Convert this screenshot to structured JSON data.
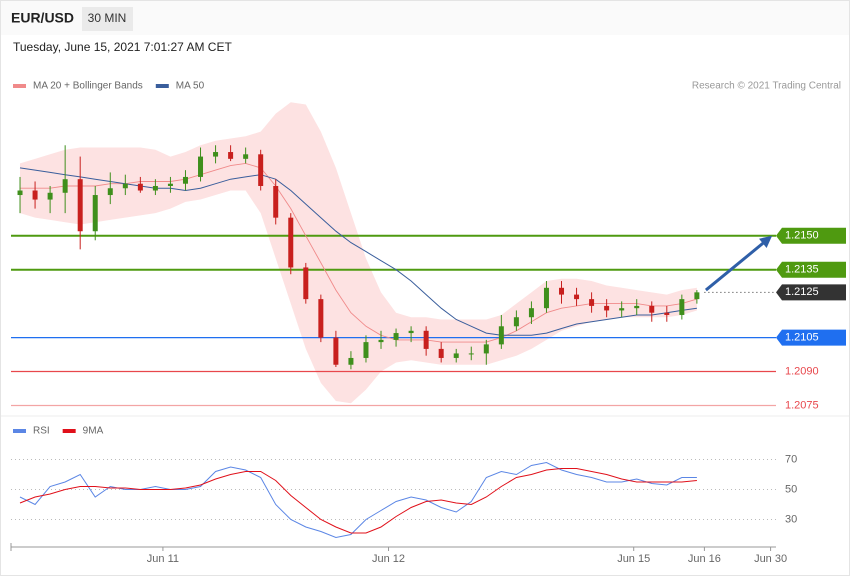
{
  "header": {
    "symbol": "EUR/USD",
    "timeframe": "30 MIN",
    "timestamp": "Tuesday, June 15, 2021 7:01:27 AM CET",
    "source": "Research © 2021 Trading Central"
  },
  "chart_data": [
    {
      "type": "candlestick",
      "xlim": [
        -0.6,
        50.26
      ],
      "ylim": [
        1.2073,
        1.221
      ],
      "up_color": "#3f8f1c",
      "down_color": "#c8201e",
      "open": [
        1.2168,
        1.217,
        1.2166,
        1.2169,
        1.2175,
        1.2152,
        1.2168,
        1.2171,
        1.2173,
        1.217,
        1.2172,
        1.2173,
        1.2176,
        1.2185,
        1.2187,
        1.2184,
        1.2186,
        1.2172,
        1.2158,
        1.2136,
        1.2122,
        1.2105,
        1.2093,
        1.2096,
        1.2103,
        1.2104,
        1.2107,
        1.2108,
        1.21,
        1.2096,
        1.2098,
        1.2098,
        1.2102,
        1.211,
        1.2114,
        1.2118,
        1.2127,
        1.2124,
        1.2122,
        1.2119,
        1.2117,
        1.2118,
        1.2119,
        1.2116,
        1.2115,
        1.2122
      ],
      "high": [
        1.2176,
        1.2174,
        1.2172,
        1.219,
        1.2185,
        1.2172,
        1.2178,
        1.2177,
        1.2176,
        1.2175,
        1.2176,
        1.2179,
        1.2189,
        1.219,
        1.219,
        1.2189,
        1.2188,
        1.2175,
        1.216,
        1.2138,
        1.2124,
        1.2108,
        1.2099,
        1.2106,
        1.2108,
        1.2109,
        1.211,
        1.211,
        1.2103,
        1.21,
        1.2101,
        1.2104,
        1.2115,
        1.2117,
        1.2121,
        1.213,
        1.213,
        1.2127,
        1.2125,
        1.2122,
        1.2121,
        1.2122,
        1.2121,
        1.2119,
        1.2124,
        1.2126
      ],
      "low": [
        1.216,
        1.2162,
        1.216,
        1.216,
        1.2144,
        1.2148,
        1.2164,
        1.2168,
        1.2169,
        1.2168,
        1.2169,
        1.217,
        1.2174,
        1.2182,
        1.2183,
        1.2182,
        1.217,
        1.2155,
        1.2133,
        1.212,
        1.2103,
        1.2092,
        1.2091,
        1.2094,
        1.21,
        1.2101,
        1.2103,
        1.2097,
        1.2094,
        1.2094,
        1.2095,
        1.2093,
        1.21,
        1.2108,
        1.2111,
        1.2116,
        1.212,
        1.2119,
        1.2116,
        1.2114,
        1.2114,
        1.2115,
        1.2112,
        1.2112,
        1.2113,
        1.212
      ],
      "close": [
        1.217,
        1.2166,
        1.2169,
        1.2175,
        1.2152,
        1.2168,
        1.2171,
        1.2173,
        1.217,
        1.2172,
        1.2173,
        1.2176,
        1.2185,
        1.2187,
        1.2184,
        1.2186,
        1.2172,
        1.2158,
        1.2136,
        1.2122,
        1.2105,
        1.2093,
        1.2096,
        1.2103,
        1.2104,
        1.2107,
        1.2108,
        1.21,
        1.2096,
        1.2098,
        1.2098,
        1.2102,
        1.211,
        1.2114,
        1.2118,
        1.2127,
        1.2124,
        1.2122,
        1.2119,
        1.2117,
        1.2118,
        1.2119,
        1.2116,
        1.2115,
        1.2122,
        1.2125
      ],
      "series": [
        {
          "name": "MA 20 + Bollinger Bands",
          "color": "#f08a8a",
          "band_color": "#fde2e2",
          "values": [
            1.2171,
            1.2171,
            1.2171,
            1.2172,
            1.2172,
            1.2172,
            1.2173,
            1.2173,
            1.2174,
            1.2174,
            1.2174,
            1.2175,
            1.2177,
            1.2179,
            1.2181,
            1.2182,
            1.218,
            1.2172,
            1.2162,
            1.215,
            1.2138,
            1.2126,
            1.2116,
            1.211,
            1.2106,
            1.2104,
            1.2104,
            1.2104,
            1.2103,
            1.2103,
            1.2103,
            1.2103,
            1.2105,
            1.2108,
            1.2112,
            1.2116,
            1.2118,
            1.2119,
            1.212,
            1.212,
            1.212,
            1.212,
            1.2119,
            1.2119,
            1.212,
            1.2122
          ],
          "upper": [
            1.2182,
            1.2184,
            1.2186,
            1.2188,
            1.2189,
            1.2189,
            1.2189,
            1.2189,
            1.2189,
            1.2188,
            1.2185,
            1.2187,
            1.219,
            1.2192,
            1.2193,
            1.2194,
            1.2196,
            1.2204,
            1.2209,
            1.2208,
            1.2196,
            1.218,
            1.216,
            1.214,
            1.2125,
            1.2116,
            1.2114,
            1.2114,
            1.2113,
            1.2113,
            1.2113,
            1.2113,
            1.2115,
            1.212,
            1.2125,
            1.213,
            1.2131,
            1.2131,
            1.213,
            1.2128,
            1.2127,
            1.2126,
            1.2125,
            1.2124,
            1.2126,
            1.2127
          ],
          "lower": [
            1.216,
            1.2158,
            1.2157,
            1.2156,
            1.2155,
            1.2156,
            1.2157,
            1.2158,
            1.2159,
            1.216,
            1.2162,
            1.2165,
            1.2166,
            1.2168,
            1.217,
            1.217,
            1.216,
            1.214,
            1.212,
            1.21,
            1.2085,
            1.2077,
            1.2076,
            1.2082,
            1.209,
            1.2094,
            1.2095,
            1.2094,
            1.2093,
            1.2093,
            1.2093,
            1.2093,
            1.2095,
            1.2097,
            1.21,
            1.2104,
            1.2108,
            1.211,
            1.2112,
            1.2113,
            1.2114,
            1.2114,
            1.2114,
            1.2114,
            1.2115,
            1.2117
          ]
        },
        {
          "name": "MA 50",
          "color": "#3a5e9c",
          "values": [
            1.218,
            1.2179,
            1.2178,
            1.2177,
            1.2176,
            1.2175,
            1.2174,
            1.2173,
            1.2172,
            1.2171,
            1.2171,
            1.217,
            1.2171,
            1.2173,
            1.2175,
            1.2176,
            1.2177,
            1.2175,
            1.217,
            1.2164,
            1.2158,
            1.2152,
            1.2147,
            1.2143,
            1.2139,
            1.2135,
            1.213,
            1.2124,
            1.2118,
            1.2113,
            1.211,
            1.2107,
            1.2106,
            1.2106,
            1.2106,
            1.2107,
            1.2109,
            1.2111,
            1.2112,
            1.2113,
            1.2114,
            1.2115,
            1.2115,
            1.2116,
            1.2117,
            1.2118
          ]
        }
      ],
      "levels": [
        {
          "value": 1.215,
          "label": "1.2150",
          "color": "#4f9a10",
          "style": "box"
        },
        {
          "value": 1.2135,
          "label": "1.2135",
          "color": "#4f9a10",
          "style": "box"
        },
        {
          "value": 1.2125,
          "label": "1.2125",
          "color": "#333333",
          "style": "dotted"
        },
        {
          "value": 1.2105,
          "label": "1.2105",
          "color": "#1f6ff0",
          "style": "box"
        },
        {
          "value": 1.209,
          "label": "1.2090",
          "color": "#e8474c",
          "style": "text"
        },
        {
          "value": 1.2075,
          "label": "1.2075",
          "color": "#f3a5a5",
          "style": "text"
        }
      ],
      "arrow": {
        "x": [
          45.6,
          50.0
        ],
        "y": [
          1.2126,
          1.215
        ],
        "color": "#2f5fa8"
      }
    },
    {
      "type": "line",
      "xlim": [
        -0.6,
        50.26
      ],
      "xticks": [
        {
          "value": 9.5,
          "label": "Jun 11"
        },
        {
          "value": 24.5,
          "label": "Jun 12"
        },
        {
          "value": 40.8,
          "label": "Jun 15"
        },
        {
          "value": 45.5,
          "label": "Jun 16"
        },
        {
          "value": 49.9,
          "label": "Jun 30"
        }
      ],
      "ylim": [
        13,
        83
      ],
      "yticks": [
        30,
        50,
        70
      ],
      "series": [
        {
          "name": "RSI",
          "color": "#5b86e5",
          "values": [
            45,
            40,
            52,
            55,
            60,
            45,
            52,
            50,
            50,
            52,
            50,
            50,
            52,
            62,
            65,
            63,
            58,
            40,
            30,
            25,
            22,
            18,
            20,
            30,
            36,
            42,
            45,
            43,
            38,
            35,
            42,
            58,
            62,
            60,
            66,
            68,
            63,
            60,
            58,
            55,
            55,
            57,
            54,
            53,
            58,
            58
          ]
        },
        {
          "name": "9MA",
          "color": "#e0101a",
          "values": [
            41,
            45,
            47,
            50,
            52,
            52,
            51,
            51,
            50,
            50,
            50,
            51,
            53,
            57,
            60,
            62,
            62,
            56,
            46,
            38,
            30,
            25,
            21,
            21,
            25,
            32,
            38,
            42,
            43,
            41,
            40,
            45,
            52,
            58,
            60,
            63,
            64,
            64,
            62,
            60,
            57,
            55,
            55,
            55,
            55,
            56
          ]
        }
      ]
    }
  ]
}
